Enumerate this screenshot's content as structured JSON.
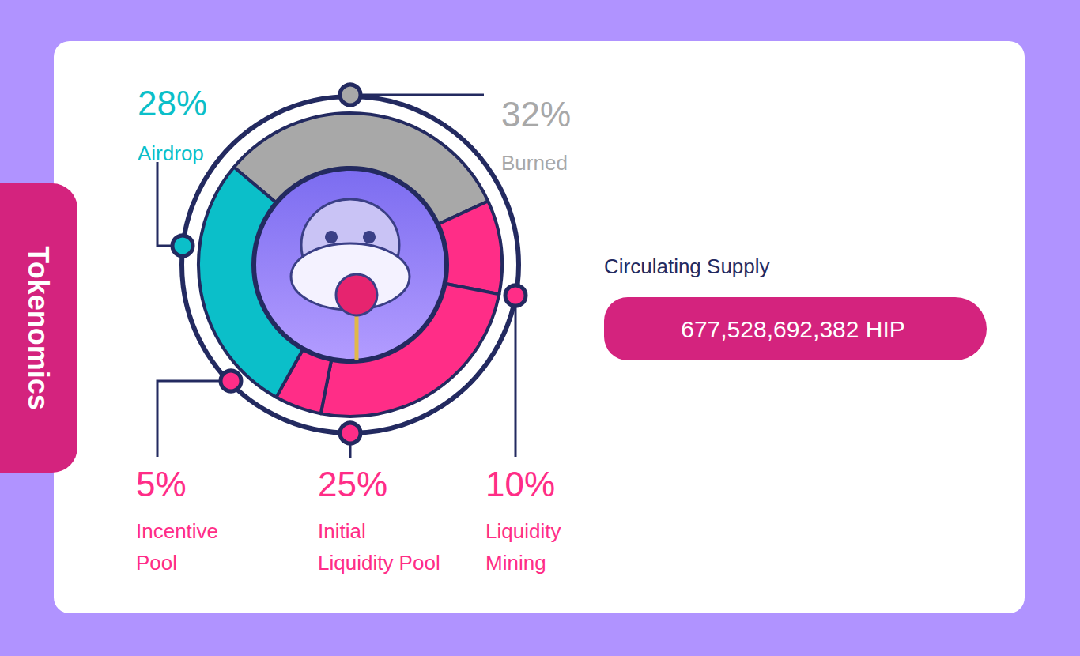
{
  "chart_data": {
    "type": "pie",
    "title": "Tokenomics",
    "categories": [
      "Burned",
      "Liquidity\nMining",
      "Initial\nLiquidity Pool",
      "Incentive\nPool",
      "Airdrop"
    ],
    "values": [
      32,
      10,
      25,
      5,
      28
    ],
    "value_labels": [
      "32%",
      "10%",
      "25%",
      "5%",
      "28%"
    ],
    "colors": [
      "#a8a8a8",
      "#ff2d87",
      "#ff2d87",
      "#ff2d87",
      "#0bbfc9"
    ],
    "data_labels": true
  },
  "circulating_supply": {
    "label": "Circulating Supply",
    "value": "677,528,692,382 HIP"
  }
}
